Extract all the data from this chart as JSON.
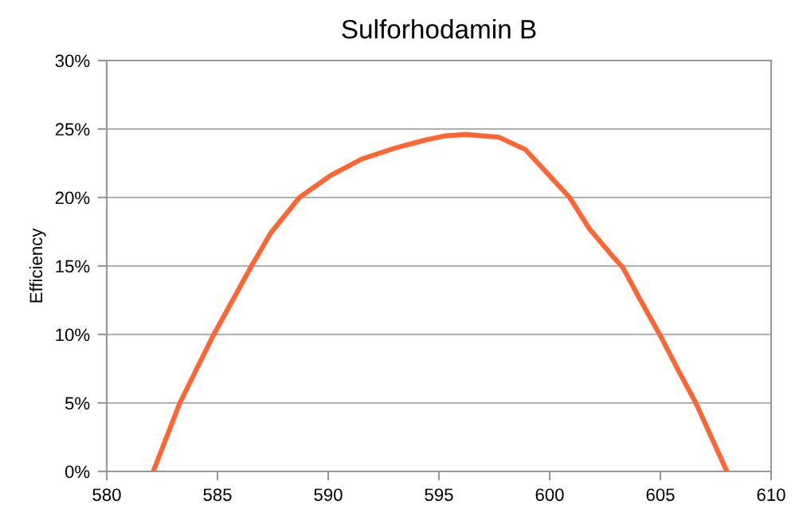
{
  "chart_data": {
    "type": "line",
    "title": "Sulforhodamin B",
    "ylabel": "Efficiency",
    "series": [
      {
        "color": "#ff6633",
        "x": [
          582.1,
          583.3,
          584.8,
          586.5,
          587.4,
          588.7,
          590.1,
          591.5,
          593.0,
          594.4,
          595.3,
          596.2,
          597.7,
          598.9,
          600.1,
          600.9,
          601.8,
          602.9,
          603.3,
          604.1,
          605.0,
          605.8,
          606.6,
          608.0
        ],
        "values": [
          0,
          5.0,
          9.9,
          14.9,
          17.4,
          20.0,
          21.6,
          22.8,
          23.6,
          24.2,
          24.5,
          24.6,
          24.4,
          23.5,
          21.4,
          20.0,
          17.7,
          15.6,
          14.9,
          12.5,
          9.9,
          7.4,
          5.0,
          0
        ]
      }
    ],
    "xlim": [
      580,
      610
    ],
    "xticks": [
      580,
      585,
      590,
      595,
      600,
      605,
      610
    ],
    "ylim": [
      0,
      30
    ],
    "yticks": [
      {
        "value": 0,
        "label": "0%"
      },
      {
        "value": 5,
        "label": "5%"
      },
      {
        "value": 10,
        "label": "10%"
      },
      {
        "value": 15,
        "label": "15%"
      },
      {
        "value": 20,
        "label": "20%"
      },
      {
        "value": 25,
        "label": "25%"
      },
      {
        "value": 30,
        "label": "30%"
      }
    ],
    "grid": "y",
    "marker": "none",
    "line_style": "solid"
  }
}
